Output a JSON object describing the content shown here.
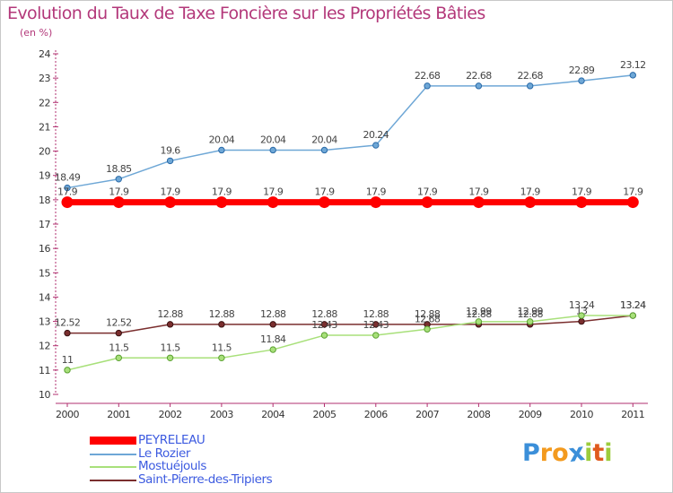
{
  "title": "Evolution du Taux de Taxe Foncière sur les Propriétés Bâties",
  "unit": "(en %)",
  "chart_data": {
    "type": "line",
    "title": "Evolution du Taux de Taxe Foncière sur les Propriétés Bâties",
    "ylabel": "(en %)",
    "xlabel": "",
    "ylim": [
      10,
      24
    ],
    "yticks": [
      "10",
      "11",
      "12",
      "13",
      "14",
      "15",
      "16",
      "17",
      "18",
      "19",
      "20",
      "21",
      "22",
      "23",
      "24"
    ],
    "categories": [
      "2000",
      "2001",
      "2002",
      "2003",
      "2004",
      "2005",
      "2006",
      "2007",
      "2008",
      "2009",
      "2010",
      "2011"
    ],
    "grid": false,
    "legend_position": "bottom-left",
    "series": [
      {
        "name": "PEYRELEAU",
        "color": "#ff0000",
        "values": [
          17.9,
          17.9,
          17.9,
          17.9,
          17.9,
          17.9,
          17.9,
          17.9,
          17.9,
          17.9,
          17.9,
          17.9
        ],
        "labels": [
          "17.9",
          "17.9",
          "17.9",
          "17.9",
          "17.9",
          "17.9",
          "17.9",
          "17.9",
          "17.9",
          "17.9",
          "17.9",
          "17.9"
        ]
      },
      {
        "name": "Le Rozier",
        "color": "#6ea7d6",
        "values": [
          18.49,
          18.85,
          19.6,
          20.04,
          20.04,
          20.04,
          20.24,
          22.68,
          22.68,
          22.68,
          22.89,
          23.12
        ],
        "labels": [
          "18.49",
          "18.85",
          "19.6",
          "20.04",
          "20.04",
          "20.04",
          "20.24",
          "22.68",
          "22.68",
          "22.68",
          "22.89",
          "23.12"
        ]
      },
      {
        "name": "Mostuéjouls",
        "color": "#a8e07a",
        "values": [
          11,
          11.5,
          11.5,
          11.5,
          11.84,
          12.43,
          12.43,
          12.68,
          12.99,
          12.99,
          13.24,
          13.24
        ],
        "labels": [
          "11",
          "11.5",
          "11.5",
          "11.5",
          "11.84",
          "12.43",
          "12.43",
          "12.68",
          "12.99",
          "12.99",
          "13.24",
          "13.24"
        ]
      },
      {
        "name": "Saint-Pierre-des-Tripiers",
        "color": "#7a2e2e",
        "values": [
          12.52,
          12.52,
          12.88,
          12.88,
          12.88,
          12.88,
          12.88,
          12.88,
          12.88,
          12.88,
          13,
          13.24
        ],
        "labels": [
          "12.52",
          "12.52",
          "12.88",
          "12.88",
          "12.88",
          "12.88",
          "12.88",
          "12.88",
          "12.88",
          "12.88",
          "13",
          "13.24"
        ]
      }
    ]
  },
  "legend": {
    "items": [
      {
        "label": "PEYRELEAU",
        "color": "#ff0000"
      },
      {
        "label": "Le Rozier",
        "color": "#6ea7d6"
      },
      {
        "label": "Mostuéjouls",
        "color": "#a8e07a"
      },
      {
        "label": "Saint-Pierre-des-Tripiers",
        "color": "#7a2e2e"
      }
    ]
  },
  "logo": {
    "text": "Proxiti",
    "letters": [
      "P",
      "r",
      "o",
      "x",
      "i",
      "t",
      "i"
    ],
    "colors": [
      "#3b8fd9",
      "#f39a1e",
      "#f39a1e",
      "#3b8fd9",
      "#9ccc3c",
      "#e05a1e",
      "#9ccc3c"
    ]
  }
}
